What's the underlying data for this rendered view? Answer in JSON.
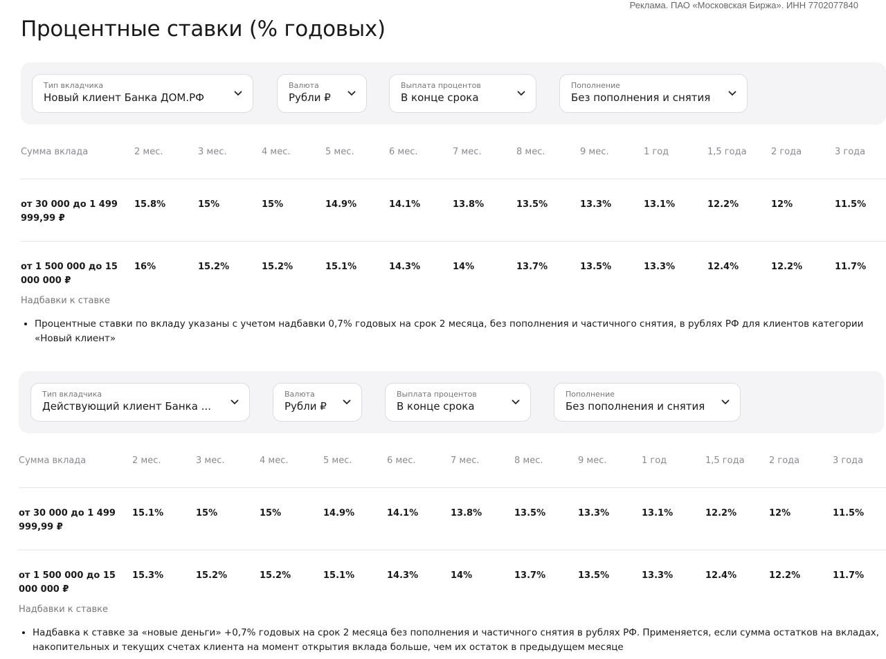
{
  "ad_note": "Реклама. ПАО «Московская Биржа». ИНН 7702077840",
  "title": "Процентные ставки (% годовых)",
  "sections": [
    {
      "filters": [
        {
          "label": "Тип вкладчика",
          "value": "Новый клиент Банка ДОМ.РФ"
        },
        {
          "label": "Валюта",
          "value": "Рубли ₽"
        },
        {
          "label": "Выплата процентов",
          "value": "В конце срока"
        },
        {
          "label": "Пополнение",
          "value": "Без пополнения и снятия"
        }
      ],
      "table": {
        "header": [
          "Сумма вклада",
          "2 мес.",
          "3 мес.",
          "4 мес.",
          "5 мес.",
          "6 мес.",
          "7 мес.",
          "8 мес.",
          "9 мес.",
          "1 год",
          "1,5 года",
          "2 года",
          "3 года"
        ],
        "rows": [
          [
            "от 30 000 до 1 499 999,99 ₽",
            "15.8%",
            "15%",
            "15%",
            "14.9%",
            "14.1%",
            "13.8%",
            "13.5%",
            "13.3%",
            "13.1%",
            "12.2%",
            "12%",
            "11.5%"
          ],
          [
            "от 1 500 000 до 15 000 000 ₽",
            "16%",
            "15.2%",
            "15.2%",
            "15.1%",
            "14.3%",
            "14%",
            "13.7%",
            "13.5%",
            "13.3%",
            "12.4%",
            "12.2%",
            "11.7%"
          ]
        ]
      },
      "bonus_title": "Надбавки к ставке",
      "notes": [
        "Процентные ставки по вкладу указаны с учетом надбавки 0,7% годовых на срок 2 месяца, без пополнения и частичного снятия, в рублях РФ для клиентов категории «Новый клиент»"
      ]
    },
    {
      "filters": [
        {
          "label": "Тип вкладчика",
          "value": "Действующий клиент Банка ..."
        },
        {
          "label": "Валюта",
          "value": "Рубли ₽"
        },
        {
          "label": "Выплата процентов",
          "value": "В конце срока"
        },
        {
          "label": "Пополнение",
          "value": "Без пополнения и снятия"
        }
      ],
      "table": {
        "header": [
          "Сумма вклада",
          "2 мес.",
          "3 мес.",
          "4 мес.",
          "5 мес.",
          "6 мес.",
          "7 мес.",
          "8 мес.",
          "9 мес.",
          "1 год",
          "1,5 года",
          "2 года",
          "3 года"
        ],
        "rows": [
          [
            "от 30 000 до 1 499 999,99 ₽",
            "15.1%",
            "15%",
            "15%",
            "14.9%",
            "14.1%",
            "13.8%",
            "13.5%",
            "13.3%",
            "13.1%",
            "12.2%",
            "12%",
            "11.5%"
          ],
          [
            "от 1 500 000 до 15 000 000 ₽",
            "15.3%",
            "15.2%",
            "15.2%",
            "15.1%",
            "14.3%",
            "14%",
            "13.7%",
            "13.5%",
            "13.3%",
            "12.4%",
            "12.2%",
            "11.7%"
          ]
        ]
      },
      "bonus_title": "Надбавки к ставке",
      "notes": [
        "Надбавка к ставке за «новые деньги» +0,7% годовых на срок 2 месяца без пополнения и частичного снятия в рублях РФ. Применяется, если сумма остатков на вкладах, накопительных и текущих счетах клиента на момент открытия вклада больше, чем их остаток в предыдущем месяце"
      ]
    }
  ]
}
